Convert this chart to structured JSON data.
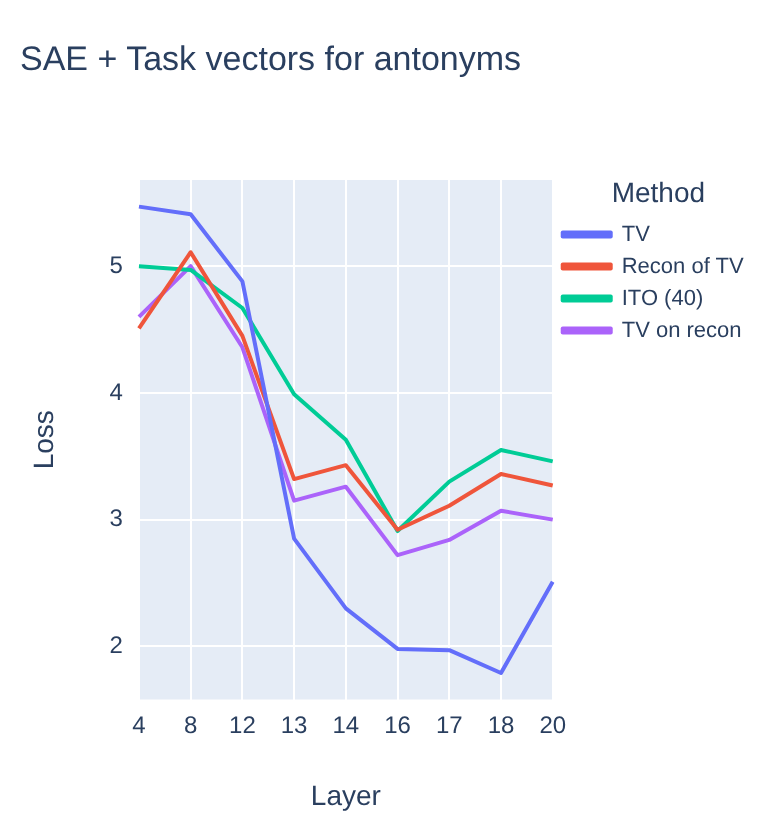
{
  "chart_data": {
    "type": "line",
    "title": "SAE + Task vectors for antonyms",
    "xlabel": "Layer",
    "ylabel": "Loss",
    "legend_title": "Method",
    "categories": [
      "4",
      "8",
      "12",
      "13",
      "14",
      "16",
      "17",
      "18",
      "20"
    ],
    "series": [
      {
        "name": "TV",
        "color": "#636efa",
        "values": [
          5.47,
          5.41,
          4.88,
          2.85,
          2.3,
          1.98,
          1.97,
          1.79,
          2.51
        ]
      },
      {
        "name": "Recon of TV",
        "color": "#ef553b",
        "values": [
          4.51,
          5.11,
          4.45,
          3.32,
          3.43,
          2.92,
          3.11,
          3.36,
          3.27
        ]
      },
      {
        "name": "ITO (40)",
        "color": "#00cc96",
        "values": [
          5.0,
          4.97,
          4.67,
          3.99,
          3.63,
          2.91,
          3.3,
          3.55,
          3.46
        ]
      },
      {
        "name": "TV on recon",
        "color": "#ab63fa",
        "values": [
          4.6,
          5.0,
          4.36,
          3.15,
          3.26,
          2.72,
          2.84,
          3.07,
          3.0
        ]
      }
    ],
    "ylim": [
      1.58,
      5.68
    ],
    "yticks": [
      2,
      3,
      4,
      5
    ],
    "grid": true,
    "legend": "top right",
    "marker": "none",
    "line_style": "solid"
  }
}
